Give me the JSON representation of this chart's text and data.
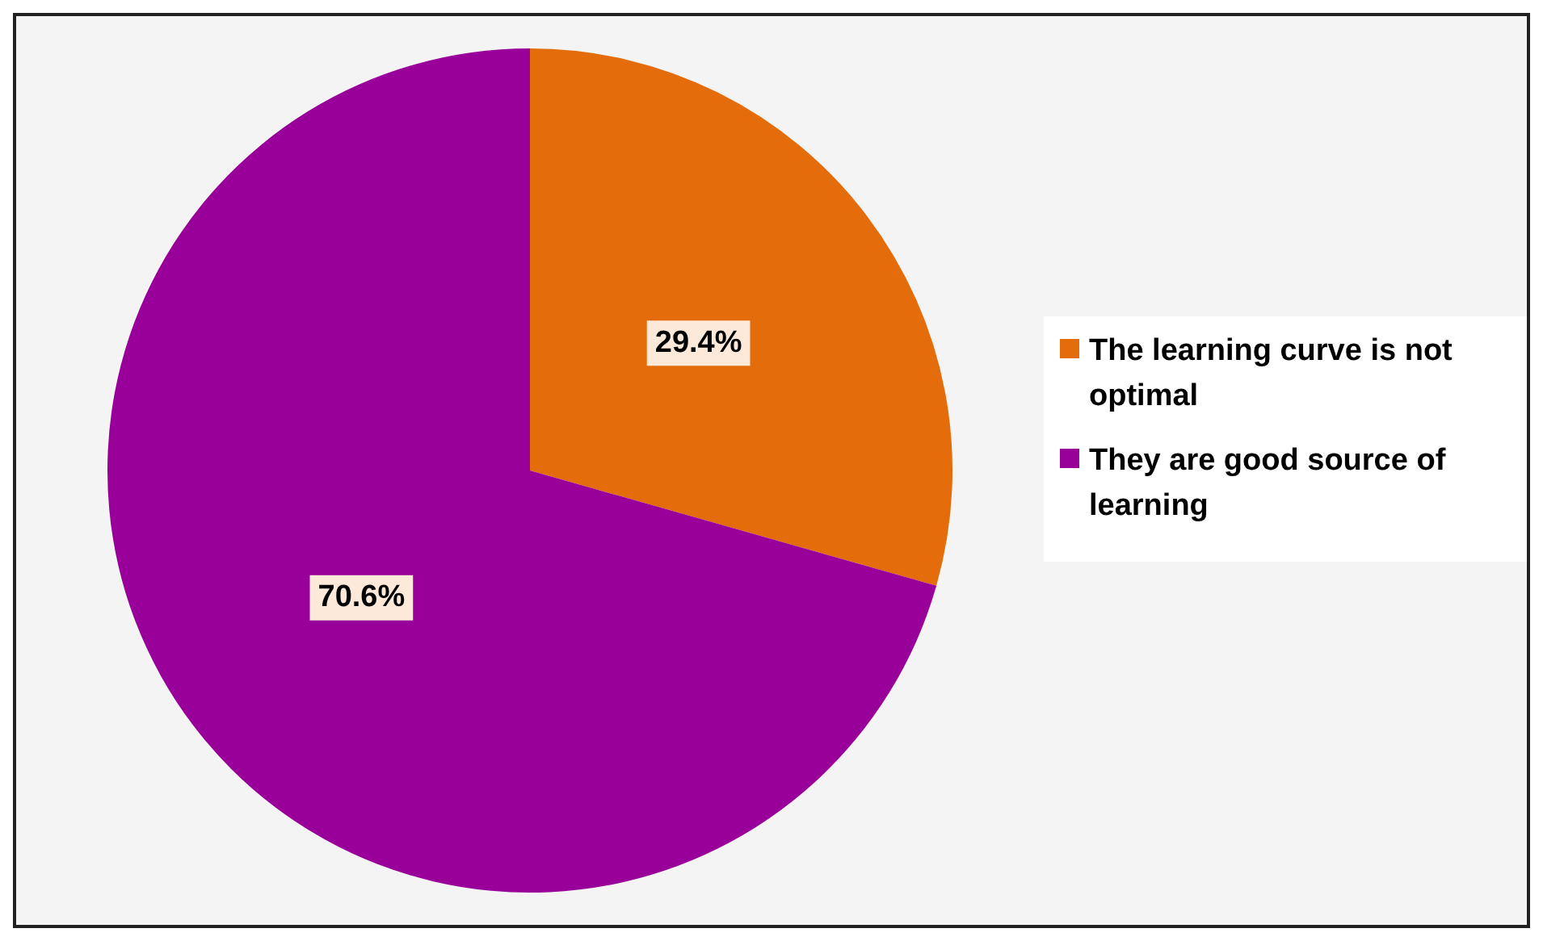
{
  "chart_data": {
    "type": "pie",
    "categories": [
      "The learning curve is not optimal",
      "They are good source of learning"
    ],
    "values": [
      29.4,
      70.6
    ],
    "colors": [
      "#e46c0a",
      "#990099"
    ],
    "value_labels": [
      "29.4%",
      "70.6%"
    ],
    "legend": "right"
  }
}
